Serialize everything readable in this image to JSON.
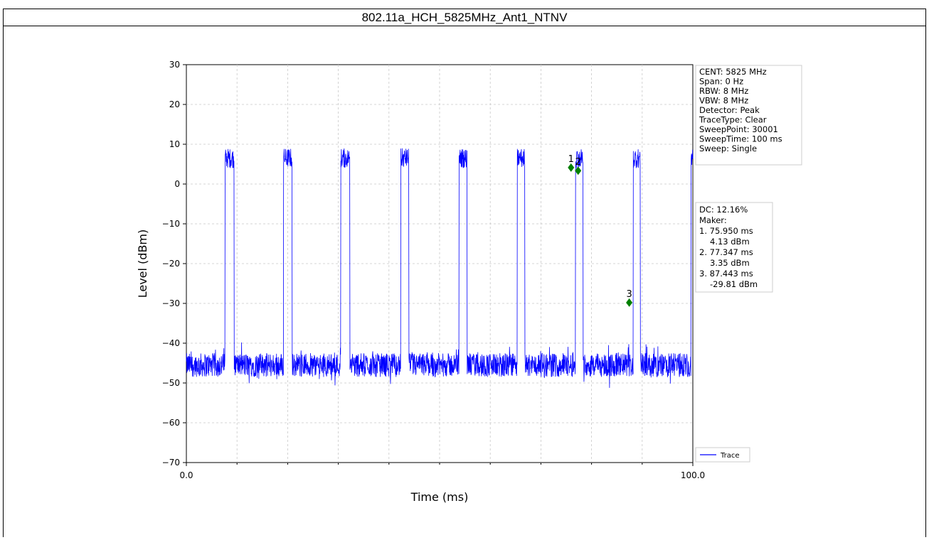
{
  "page_title": "802.11a_HCH_5825MHz_Ant1_NTNV",
  "chart_data": {
    "type": "line",
    "title": "",
    "xlabel": "Time (ms)",
    "ylabel": "Level (dBm)",
    "xlim": [
      0.0,
      100.0
    ],
    "ylim": [
      -70,
      30
    ],
    "x_tick_labels": [
      "0.0",
      "100.0"
    ],
    "y_ticks": [
      30,
      20,
      10,
      0,
      -10,
      -20,
      -30,
      -40,
      -50,
      -60,
      -70
    ],
    "grid": true,
    "legend_position": "bottom-right",
    "series": [
      {
        "name": "Trace",
        "color": "#0000ff",
        "noise_floor_dbm": -45.5,
        "burst_level_dbm": 6.5,
        "burst_on_ms": [
          7.6,
          19.2,
          30.5,
          42.3,
          53.8,
          65.3,
          76.8,
          88.2,
          99.6
        ],
        "burst_off_ms": [
          9.4,
          20.9,
          32.3,
          43.9,
          55.4,
          66.8,
          78.3,
          89.6,
          100.0
        ]
      }
    ],
    "markers": [
      {
        "label": "1",
        "x": 75.95,
        "y": 4.13,
        "color": "#008000"
      },
      {
        "label": "2",
        "x": 77.347,
        "y": 3.35,
        "color": "#008000"
      },
      {
        "label": "3",
        "x": 87.443,
        "y": -29.81,
        "color": "#008000"
      }
    ],
    "info_box": [
      "CENT: 5825 MHz",
      "Span: 0 Hz",
      "RBW: 8 MHz",
      "VBW: 8 MHz",
      "Detector: Peak",
      "TraceType: Clear",
      "SweepPoint: 30001",
      "SweepTime: 100 ms",
      "Sweep: Single"
    ],
    "marker_box": [
      "DC: 12.16%",
      "Maker:",
      "1. 75.950 ms",
      "    4.13 dBm",
      "2. 77.347 ms",
      "    3.35 dBm",
      "3. 87.443 ms",
      "    -29.81 dBm"
    ]
  }
}
